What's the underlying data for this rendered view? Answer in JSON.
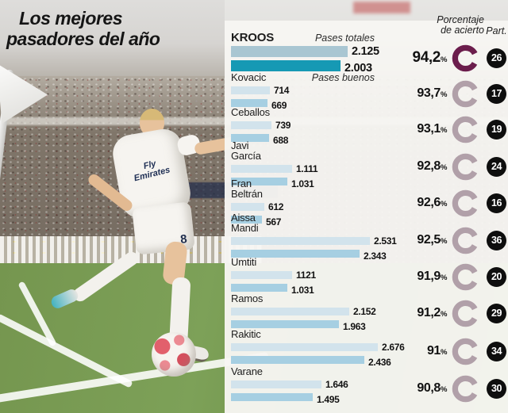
{
  "title": {
    "line1": "Los mejores",
    "line2": "pasadores del año"
  },
  "headers": {
    "percentage_line1": "Porcentaje",
    "percentage_line2": "de acierto",
    "participations": "Part."
  },
  "legend": {
    "total": "Pases totales",
    "good": "Pases buenos"
  },
  "symbols": {
    "percent": "%"
  },
  "colors": {
    "bar_total_light": "#d2e3ec",
    "bar_good_light": "#a6cfe2",
    "bar_total_highlight": "#a9c6d2",
    "bar_good_highlight": "#1699b4",
    "donut_highlight": "#6b1d4c",
    "donut_normal": "#b1a0a9",
    "badge_background": "#0e0e0e",
    "pitch_green": "#7a9b55"
  },
  "photo": {
    "jersey_sponsor_line1": "Fly",
    "jersey_sponsor_line2": "Emirates",
    "shorts_number": "8"
  },
  "chart_data": {
    "type": "bar",
    "orientation": "horizontal",
    "title": "Los mejores pasadores del año",
    "categories": [
      "Kroos",
      "Kovacic",
      "Ceballos",
      "Javi García",
      "Fran Beltrán",
      "Aissa Mandi",
      "Umtiti",
      "Ramos",
      "Rakitic",
      "Varane"
    ],
    "series": [
      {
        "name": "Pases totales",
        "values": [
          2125,
          714,
          739,
          1111,
          612,
          2531,
          1121,
          2152,
          2676,
          1646
        ]
      },
      {
        "name": "Pases buenos",
        "values": [
          2003,
          669,
          688,
          1031,
          567,
          2343,
          1031,
          1963,
          2436,
          1495
        ]
      }
    ],
    "accuracy_pct": [
      94.2,
      93.7,
      93.1,
      92.8,
      92.6,
      92.5,
      91.9,
      91.2,
      91,
      90.8
    ],
    "participations": [
      26,
      17,
      19,
      24,
      16,
      36,
      20,
      29,
      34,
      30
    ],
    "xlim": [
      0,
      2700
    ],
    "grid": false,
    "legend_position": "first-row-inline"
  },
  "rows": [
    {
      "name1": "KROOS",
      "name2": "",
      "total": 2125,
      "total_label": "2.125",
      "good": 2003,
      "good_label": "2.003",
      "pct": "94,2",
      "part": "26",
      "highlight": true
    },
    {
      "name1": "Kovacic",
      "name2": "",
      "total": 714,
      "total_label": "714",
      "good": 669,
      "good_label": "669",
      "pct": "93,7",
      "part": "17",
      "highlight": false
    },
    {
      "name1": "Ceballos",
      "name2": "",
      "total": 739,
      "total_label": "739",
      "good": 688,
      "good_label": "688",
      "pct": "93,1",
      "part": "19",
      "highlight": false
    },
    {
      "name1": "Javi",
      "name2": "García",
      "total": 1111,
      "total_label": "1.111",
      "good": 1031,
      "good_label": "1.031",
      "pct": "92,8",
      "part": "24",
      "highlight": false
    },
    {
      "name1": "Fran",
      "name2": "Beltrán",
      "total": 612,
      "total_label": "612",
      "good": 567,
      "good_label": "567",
      "pct": "92,6",
      "part": "16",
      "highlight": false
    },
    {
      "name1": "Aissa",
      "name2": "Mandi",
      "total": 2531,
      "total_label": "2.531",
      "good": 2343,
      "good_label": "2.343",
      "pct": "92,5",
      "part": "36",
      "highlight": false
    },
    {
      "name1": "Umtiti",
      "name2": "",
      "total": 1121,
      "total_label": "1121",
      "good": 1031,
      "good_label": "1.031",
      "pct": "91,9",
      "part": "20",
      "highlight": false
    },
    {
      "name1": "Ramos",
      "name2": "",
      "total": 2152,
      "total_label": "2.152",
      "good": 1963,
      "good_label": "1.963",
      "pct": "91,2",
      "part": "29",
      "highlight": false
    },
    {
      "name1": "Rakitic",
      "name2": "",
      "total": 2676,
      "total_label": "2.676",
      "good": 2436,
      "good_label": "2.436",
      "pct": "91",
      "part": "34",
      "highlight": false
    },
    {
      "name1": "Varane",
      "name2": "",
      "total": 1646,
      "total_label": "1.646",
      "good": 1495,
      "good_label": "1.495",
      "pct": "90,8",
      "part": "30",
      "highlight": false
    }
  ]
}
